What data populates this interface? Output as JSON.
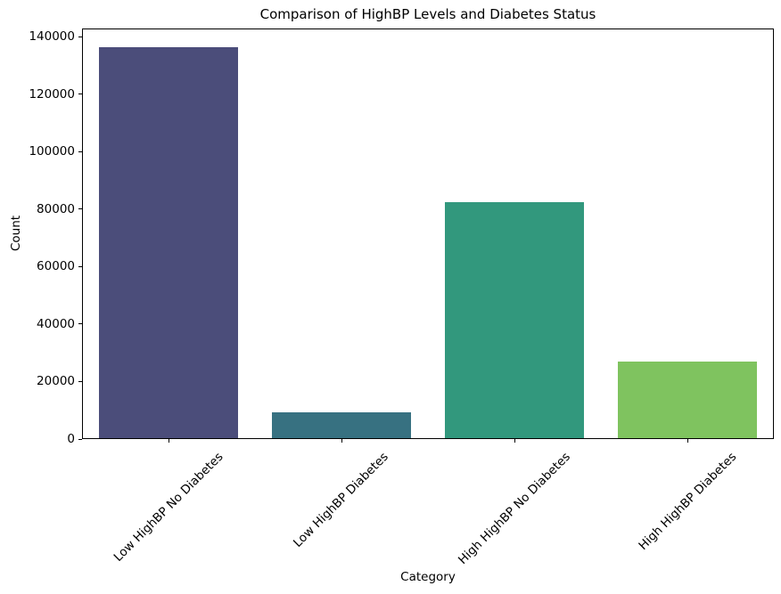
{
  "chart_data": {
    "type": "bar",
    "title": "Comparison of HighBP Levels and Diabetes Status",
    "xlabel": "Category",
    "ylabel": "Count",
    "categories": [
      "Low HighBP No Diabetes",
      "Low HighBP Diabetes",
      "High HighBP No Diabetes",
      "High HighBP Diabetes"
    ],
    "values": [
      136000,
      9000,
      82000,
      26600
    ],
    "bar_colors": [
      "#4b4d7a",
      "#377181",
      "#32987d",
      "#7fc35f"
    ],
    "yticks": [
      0,
      20000,
      40000,
      60000,
      80000,
      100000,
      120000,
      140000
    ],
    "ytick_labels": [
      "0",
      "20000",
      "40000",
      "60000",
      "80000",
      "100000",
      "120000",
      "140000"
    ],
    "ylim": [
      0,
      142800
    ],
    "xtick_rotation_deg": 45,
    "bar_width_fraction": 0.8,
    "grid": false,
    "legend": "none",
    "background_color": "#ffffff",
    "axis_color": "#000000",
    "text_color": "#000000"
  }
}
